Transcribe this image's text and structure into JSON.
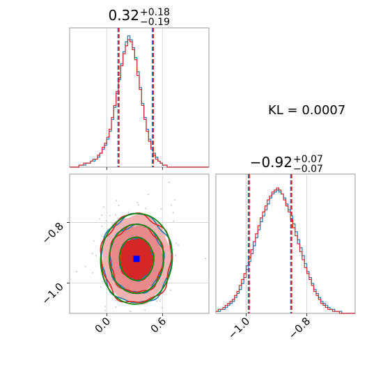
{
  "colors": {
    "series_a": "#1f77b4",
    "series_b": "#d62728",
    "gauss": "#118811",
    "marker": "#0000ff",
    "frame": "#808080",
    "grid": "#d0d0d0"
  },
  "annotation": {
    "kl_text": "KL = 0.0007"
  },
  "chart_data": [
    {
      "type": "histogram",
      "panel": "top-left",
      "title_center": "0.32",
      "title_sup": "+0.18",
      "title_sub": "−0.19",
      "xlim": [
        -0.4,
        1.1
      ],
      "xgrid": [
        0.0,
        0.6
      ],
      "quantile_lines": [
        0.13,
        0.5
      ],
      "bin_start": -0.4,
      "bin_width": 0.025,
      "series": [
        {
          "color_key": "series_a",
          "values": [
            0,
            0,
            0,
            0,
            1,
            1,
            1,
            2,
            2,
            3,
            3,
            4,
            5,
            7,
            9,
            11,
            14,
            18,
            24,
            30,
            37,
            44,
            52,
            58,
            63,
            66,
            64,
            60,
            55,
            48,
            40,
            32,
            25,
            19,
            14,
            10,
            7,
            5,
            3,
            2,
            1,
            1,
            0,
            0,
            0,
            0,
            0,
            0,
            0,
            0,
            0,
            0,
            0,
            0,
            0,
            0,
            0,
            0,
            0,
            0
          ]
        },
        {
          "color_key": "series_b",
          "values": [
            0,
            0,
            0,
            0,
            1,
            1,
            2,
            2,
            2,
            3,
            4,
            4,
            6,
            7,
            10,
            12,
            15,
            19,
            25,
            31,
            38,
            45,
            51,
            57,
            61,
            64,
            63,
            59,
            54,
            46,
            39,
            31,
            24,
            18,
            13,
            9,
            6,
            4,
            3,
            2,
            1,
            1,
            0,
            0,
            0,
            0,
            0,
            0,
            0,
            0,
            0,
            0,
            0,
            0,
            0,
            0,
            0,
            0,
            0,
            0
          ]
        }
      ],
      "ylim": [
        0,
        70
      ]
    },
    {
      "type": "contour",
      "panel": "bottom-left",
      "xlim": [
        -0.4,
        1.1
      ],
      "ylim": [
        -1.1,
        -0.64
      ],
      "xticks": [
        0.0,
        0.6
      ],
      "xtick_labels": [
        "0.0",
        "0.6"
      ],
      "yticks": [
        -0.8,
        -1.0
      ],
      "ytick_labels": [
        "−0.8",
        "−1.0"
      ],
      "marker": {
        "x": 0.32,
        "y": -0.92
      },
      "center": {
        "x": 0.32,
        "y": -0.92
      },
      "sigma": {
        "x": 0.18,
        "y": 0.07
      },
      "levels": [
        1.0,
        1.6,
        2.1
      ]
    },
    {
      "type": "histogram",
      "panel": "bottom-right",
      "title_center": "−0.92",
      "title_sup": "+0.07",
      "title_sub": "−0.07",
      "xlim": [
        -1.1,
        -0.64
      ],
      "xticks": [
        -1.0,
        -0.8
      ],
      "xtick_labels": [
        "−1.0",
        "−0.8"
      ],
      "quantile_lines": [
        -0.99,
        -0.85
      ],
      "bin_start": -1.1,
      "bin_width": 0.0077,
      "series": [
        {
          "color_key": "series_a",
          "values": [
            1,
            1,
            2,
            2,
            3,
            4,
            5,
            6,
            8,
            10,
            12,
            15,
            18,
            22,
            26,
            30,
            34,
            38,
            42,
            46,
            49,
            52,
            55,
            58,
            60,
            61,
            62,
            61,
            60,
            58,
            55,
            52,
            49,
            45,
            41,
            37,
            33,
            29,
            25,
            21,
            18,
            15,
            12,
            10,
            8,
            6,
            5,
            4,
            3,
            2,
            2,
            1,
            1,
            1,
            0,
            0,
            0,
            0,
            0,
            0
          ]
        },
        {
          "color_key": "series_b",
          "values": [
            1,
            2,
            2,
            3,
            4,
            5,
            6,
            7,
            9,
            11,
            14,
            17,
            20,
            24,
            28,
            32,
            36,
            40,
            44,
            48,
            51,
            54,
            57,
            59,
            61,
            62,
            63,
            62,
            60,
            57,
            54,
            51,
            47,
            43,
            39,
            35,
            31,
            27,
            23,
            20,
            17,
            14,
            11,
            9,
            7,
            5,
            4,
            3,
            2,
            2,
            1,
            1,
            1,
            0,
            0,
            0,
            0,
            0,
            0,
            0
          ]
        }
      ],
      "ylim": [
        0,
        70
      ]
    }
  ]
}
